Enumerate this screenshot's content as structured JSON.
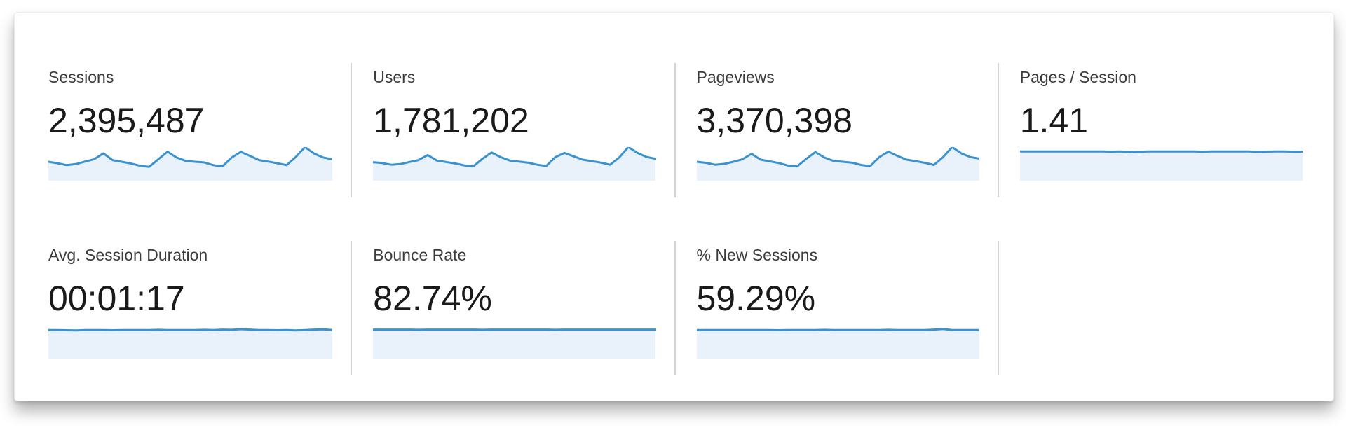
{
  "colors": {
    "spark_line": "#3a93d0",
    "spark_fill": "#e9f2fa",
    "divider": "#d4d4d4",
    "label_text": "#3b3b3b",
    "value_text": "#1a1a1a",
    "card_background": "#ffffff"
  },
  "metrics": [
    {
      "id": "sessions",
      "label": "Sessions",
      "value": "2,395,487",
      "sparkline": [
        30,
        23,
        14,
        19,
        31,
        42,
        70,
        38,
        30,
        22,
        11,
        6,
        42,
        78,
        50,
        34,
        30,
        27,
        14,
        8,
        50,
        77,
        58,
        38,
        31,
        23,
        14,
        53,
        100,
        69,
        50,
        42
      ]
    },
    {
      "id": "users",
      "label": "Users",
      "value": "1,781,202",
      "sparkline": [
        28,
        24,
        16,
        19,
        29,
        38,
        62,
        36,
        29,
        22,
        13,
        8,
        44,
        74,
        52,
        36,
        31,
        26,
        16,
        10,
        52,
        72,
        56,
        40,
        33,
        26,
        16,
        50,
        100,
        72,
        53,
        44
      ]
    },
    {
      "id": "pageviews",
      "label": "Pageviews",
      "value": "3,370,398",
      "sparkline": [
        30,
        25,
        16,
        20,
        30,
        42,
        68,
        40,
        32,
        24,
        12,
        8,
        44,
        76,
        50,
        34,
        30,
        26,
        15,
        9,
        52,
        78,
        58,
        40,
        33,
        25,
        15,
        52,
        100,
        70,
        52,
        45
      ]
    },
    {
      "id": "pages-per-session",
      "label": "Pages / Session",
      "value": "1.41",
      "sparkline": [
        79,
        79,
        79,
        79,
        79,
        79,
        79,
        79,
        79,
        79,
        78,
        79,
        76,
        77,
        79,
        79,
        79,
        79,
        79,
        79,
        78,
        79,
        79,
        79,
        79,
        79,
        77,
        78,
        79,
        79,
        78,
        78
      ]
    },
    {
      "id": "avg-session-duration",
      "label": "Avg. Session Duration",
      "value": "00:01:17",
      "sparkline": [
        76,
        76,
        75,
        74,
        76,
        76,
        76,
        75,
        76,
        76,
        76,
        76,
        77,
        76,
        76,
        76,
        76,
        77,
        76,
        78,
        77,
        80,
        78,
        76,
        76,
        75,
        76,
        74,
        76,
        78,
        79,
        76
      ]
    },
    {
      "id": "bounce-rate",
      "label": "Bounce Rate",
      "value": "82.74%",
      "sparkline": [
        78,
        78,
        78,
        78,
        78,
        77,
        78,
        78,
        78,
        78,
        78,
        78,
        77,
        78,
        78,
        78,
        78,
        78,
        78,
        78,
        77,
        78,
        78,
        78,
        78,
        78,
        78,
        78,
        78,
        78,
        78,
        78
      ]
    },
    {
      "id": "new-sessions",
      "label": "% New Sessions",
      "value": "59.29%",
      "sparkline": [
        76,
        76,
        76,
        76,
        76,
        76,
        76,
        76,
        76,
        75,
        76,
        76,
        76,
        76,
        77,
        76,
        76,
        76,
        76,
        76,
        76,
        77,
        76,
        76,
        76,
        76,
        78,
        81,
        76,
        76,
        76,
        76
      ]
    }
  ],
  "chart_data": [
    {
      "type": "area",
      "title": "Sessions",
      "headline_value": "2,395,487",
      "scale": "relative_0_100",
      "x": "time (daily, no axis labels shown)",
      "values": [
        30,
        23,
        14,
        19,
        31,
        42,
        70,
        38,
        30,
        22,
        11,
        6,
        42,
        78,
        50,
        34,
        30,
        27,
        14,
        8,
        50,
        77,
        58,
        38,
        31,
        23,
        14,
        53,
        100,
        69,
        50,
        42
      ]
    },
    {
      "type": "area",
      "title": "Users",
      "headline_value": "1,781,202",
      "scale": "relative_0_100",
      "x": "time (daily, no axis labels shown)",
      "values": [
        28,
        24,
        16,
        19,
        29,
        38,
        62,
        36,
        29,
        22,
        13,
        8,
        44,
        74,
        52,
        36,
        31,
        26,
        16,
        10,
        52,
        72,
        56,
        40,
        33,
        26,
        16,
        50,
        100,
        72,
        53,
        44
      ]
    },
    {
      "type": "area",
      "title": "Pageviews",
      "headline_value": "3,370,398",
      "scale": "relative_0_100",
      "x": "time (daily, no axis labels shown)",
      "values": [
        30,
        25,
        16,
        20,
        30,
        42,
        68,
        40,
        32,
        24,
        12,
        8,
        44,
        76,
        50,
        34,
        30,
        26,
        15,
        9,
        52,
        78,
        58,
        40,
        33,
        25,
        15,
        52,
        100,
        70,
        52,
        45
      ]
    },
    {
      "type": "area",
      "title": "Pages / Session",
      "headline_value": "1.41",
      "scale": "relative_0_100",
      "x": "time (daily, no axis labels shown)",
      "values": [
        79,
        79,
        79,
        79,
        79,
        79,
        79,
        79,
        79,
        79,
        78,
        79,
        76,
        77,
        79,
        79,
        79,
        79,
        79,
        79,
        78,
        79,
        79,
        79,
        79,
        79,
        77,
        78,
        79,
        79,
        78,
        78
      ]
    },
    {
      "type": "area",
      "title": "Avg. Session Duration",
      "headline_value": "00:01:17",
      "scale": "relative_0_100",
      "x": "time (daily, no axis labels shown)",
      "values": [
        76,
        76,
        75,
        74,
        76,
        76,
        76,
        75,
        76,
        76,
        76,
        76,
        77,
        76,
        76,
        76,
        76,
        77,
        76,
        78,
        77,
        80,
        78,
        76,
        76,
        75,
        76,
        74,
        76,
        78,
        79,
        76
      ]
    },
    {
      "type": "area",
      "title": "Bounce Rate",
      "headline_value": "82.74%",
      "scale": "relative_0_100",
      "x": "time (daily, no axis labels shown)",
      "values": [
        78,
        78,
        78,
        78,
        78,
        77,
        78,
        78,
        78,
        78,
        78,
        78,
        77,
        78,
        78,
        78,
        78,
        78,
        78,
        78,
        77,
        78,
        78,
        78,
        78,
        78,
        78,
        78,
        78,
        78,
        78,
        78
      ]
    },
    {
      "type": "area",
      "title": "% New Sessions",
      "headline_value": "59.29%",
      "scale": "relative_0_100",
      "x": "time (daily, no axis labels shown)",
      "values": [
        76,
        76,
        76,
        76,
        76,
        76,
        76,
        76,
        76,
        75,
        76,
        76,
        76,
        76,
        77,
        76,
        76,
        76,
        76,
        76,
        76,
        77,
        76,
        76,
        76,
        76,
        78,
        81,
        76,
        76,
        76,
        76
      ]
    }
  ]
}
